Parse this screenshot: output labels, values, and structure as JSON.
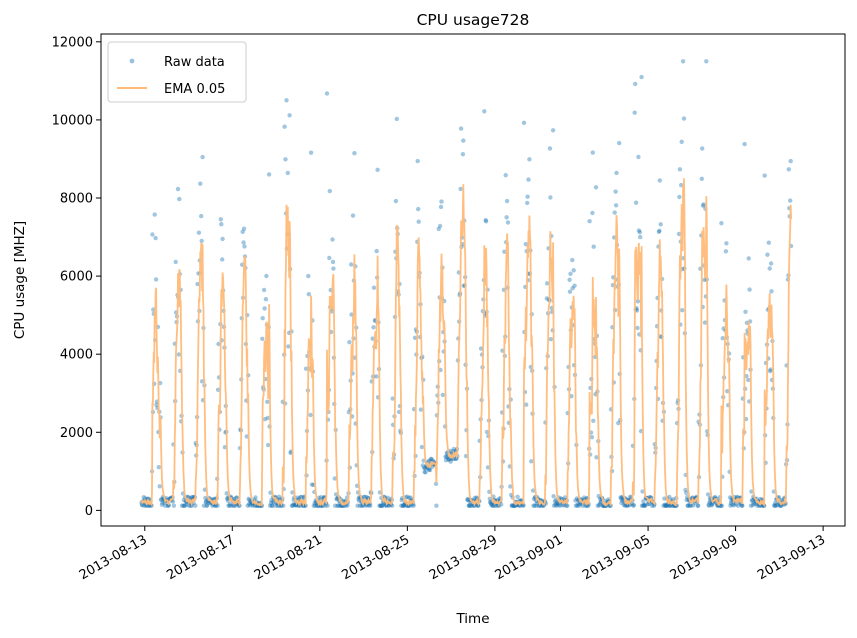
{
  "chart_data": {
    "type": "scatter",
    "title": "CPU usage728",
    "xlabel": "Time",
    "ylabel": "CPU usage [MHZ]",
    "x_type": "date",
    "xlim": [
      "2013-08-11",
      "2013-09-14"
    ],
    "ylim": [
      -400,
      12200
    ],
    "y_ticks": [
      0,
      2000,
      4000,
      6000,
      8000,
      10000,
      12000
    ],
    "x_ticks": [
      "2013-08-13",
      "2013-08-17",
      "2013-08-21",
      "2013-08-25",
      "2013-08-29",
      "2013-09-01",
      "2013-09-05",
      "2013-09-09",
      "2013-09-13"
    ],
    "legend_position": "top-left",
    "grid": false,
    "series": [
      {
        "name": "Raw data",
        "kind": "scatter",
        "color": "#1f77b4",
        "description_note": "",
        "daily_peaks": [
          [
            "2013-08-13",
            4500
          ],
          [
            "2013-08-14",
            5800
          ],
          [
            "2013-08-15",
            6200
          ],
          [
            "2013-08-16",
            5300
          ],
          [
            "2013-08-17",
            6200
          ],
          [
            "2013-08-18",
            3800
          ],
          [
            "2013-08-19",
            6000
          ],
          [
            "2013-08-20",
            4300
          ],
          [
            "2013-08-21",
            6400
          ],
          [
            "2013-08-22",
            5000
          ],
          [
            "2013-08-23",
            5900
          ],
          [
            "2013-08-24",
            5600
          ],
          [
            "2013-08-25",
            4600
          ],
          [
            "2013-08-26",
            4700
          ],
          [
            "2013-08-27",
            6600
          ],
          [
            "2013-08-28",
            5800
          ],
          [
            "2013-08-29",
            5800
          ],
          [
            "2013-08-30",
            5900
          ],
          [
            "2013-08-31",
            5900
          ],
          [
            "2013-09-01",
            4900
          ],
          [
            "2013-09-02",
            4300
          ],
          [
            "2013-09-03",
            6600
          ],
          [
            "2013-09-04",
            6300
          ],
          [
            "2013-09-05",
            5400
          ],
          [
            "2013-09-06",
            7500
          ],
          [
            "2013-09-07",
            7500
          ],
          [
            "2013-09-08",
            4500
          ],
          [
            "2013-09-09",
            4700
          ],
          [
            "2013-09-10",
            5600
          ],
          [
            "2013-09-11",
            7900
          ]
        ]
      },
      {
        "name": "EMA 0.05",
        "kind": "line",
        "color": "#ffbb78",
        "daily_peaks": [
          [
            "2013-08-13",
            4500
          ],
          [
            "2013-08-14",
            5800
          ],
          [
            "2013-08-15",
            6200
          ],
          [
            "2013-08-16",
            5300
          ],
          [
            "2013-08-17",
            6200
          ],
          [
            "2013-08-18",
            3800
          ],
          [
            "2013-08-19",
            6000
          ],
          [
            "2013-08-20",
            4300
          ],
          [
            "2013-08-21",
            6400
          ],
          [
            "2013-08-22",
            5000
          ],
          [
            "2013-08-23",
            5900
          ],
          [
            "2013-08-24",
            5600
          ],
          [
            "2013-08-25",
            4600
          ],
          [
            "2013-08-26",
            4700
          ],
          [
            "2013-08-27",
            6600
          ],
          [
            "2013-08-28",
            5800
          ],
          [
            "2013-08-29",
            5800
          ],
          [
            "2013-08-30",
            5900
          ],
          [
            "2013-08-31",
            5900
          ],
          [
            "2013-09-01",
            4900
          ],
          [
            "2013-09-02",
            4300
          ],
          [
            "2013-09-03",
            6600
          ],
          [
            "2013-09-04",
            6300
          ],
          [
            "2013-09-05",
            5400
          ],
          [
            "2013-09-06",
            7500
          ],
          [
            "2013-09-07",
            7500
          ],
          [
            "2013-09-08",
            4500
          ],
          [
            "2013-09-09",
            4700
          ],
          [
            "2013-09-10",
            5600
          ],
          [
            "2013-09-11",
            7900
          ]
        ]
      }
    ]
  }
}
